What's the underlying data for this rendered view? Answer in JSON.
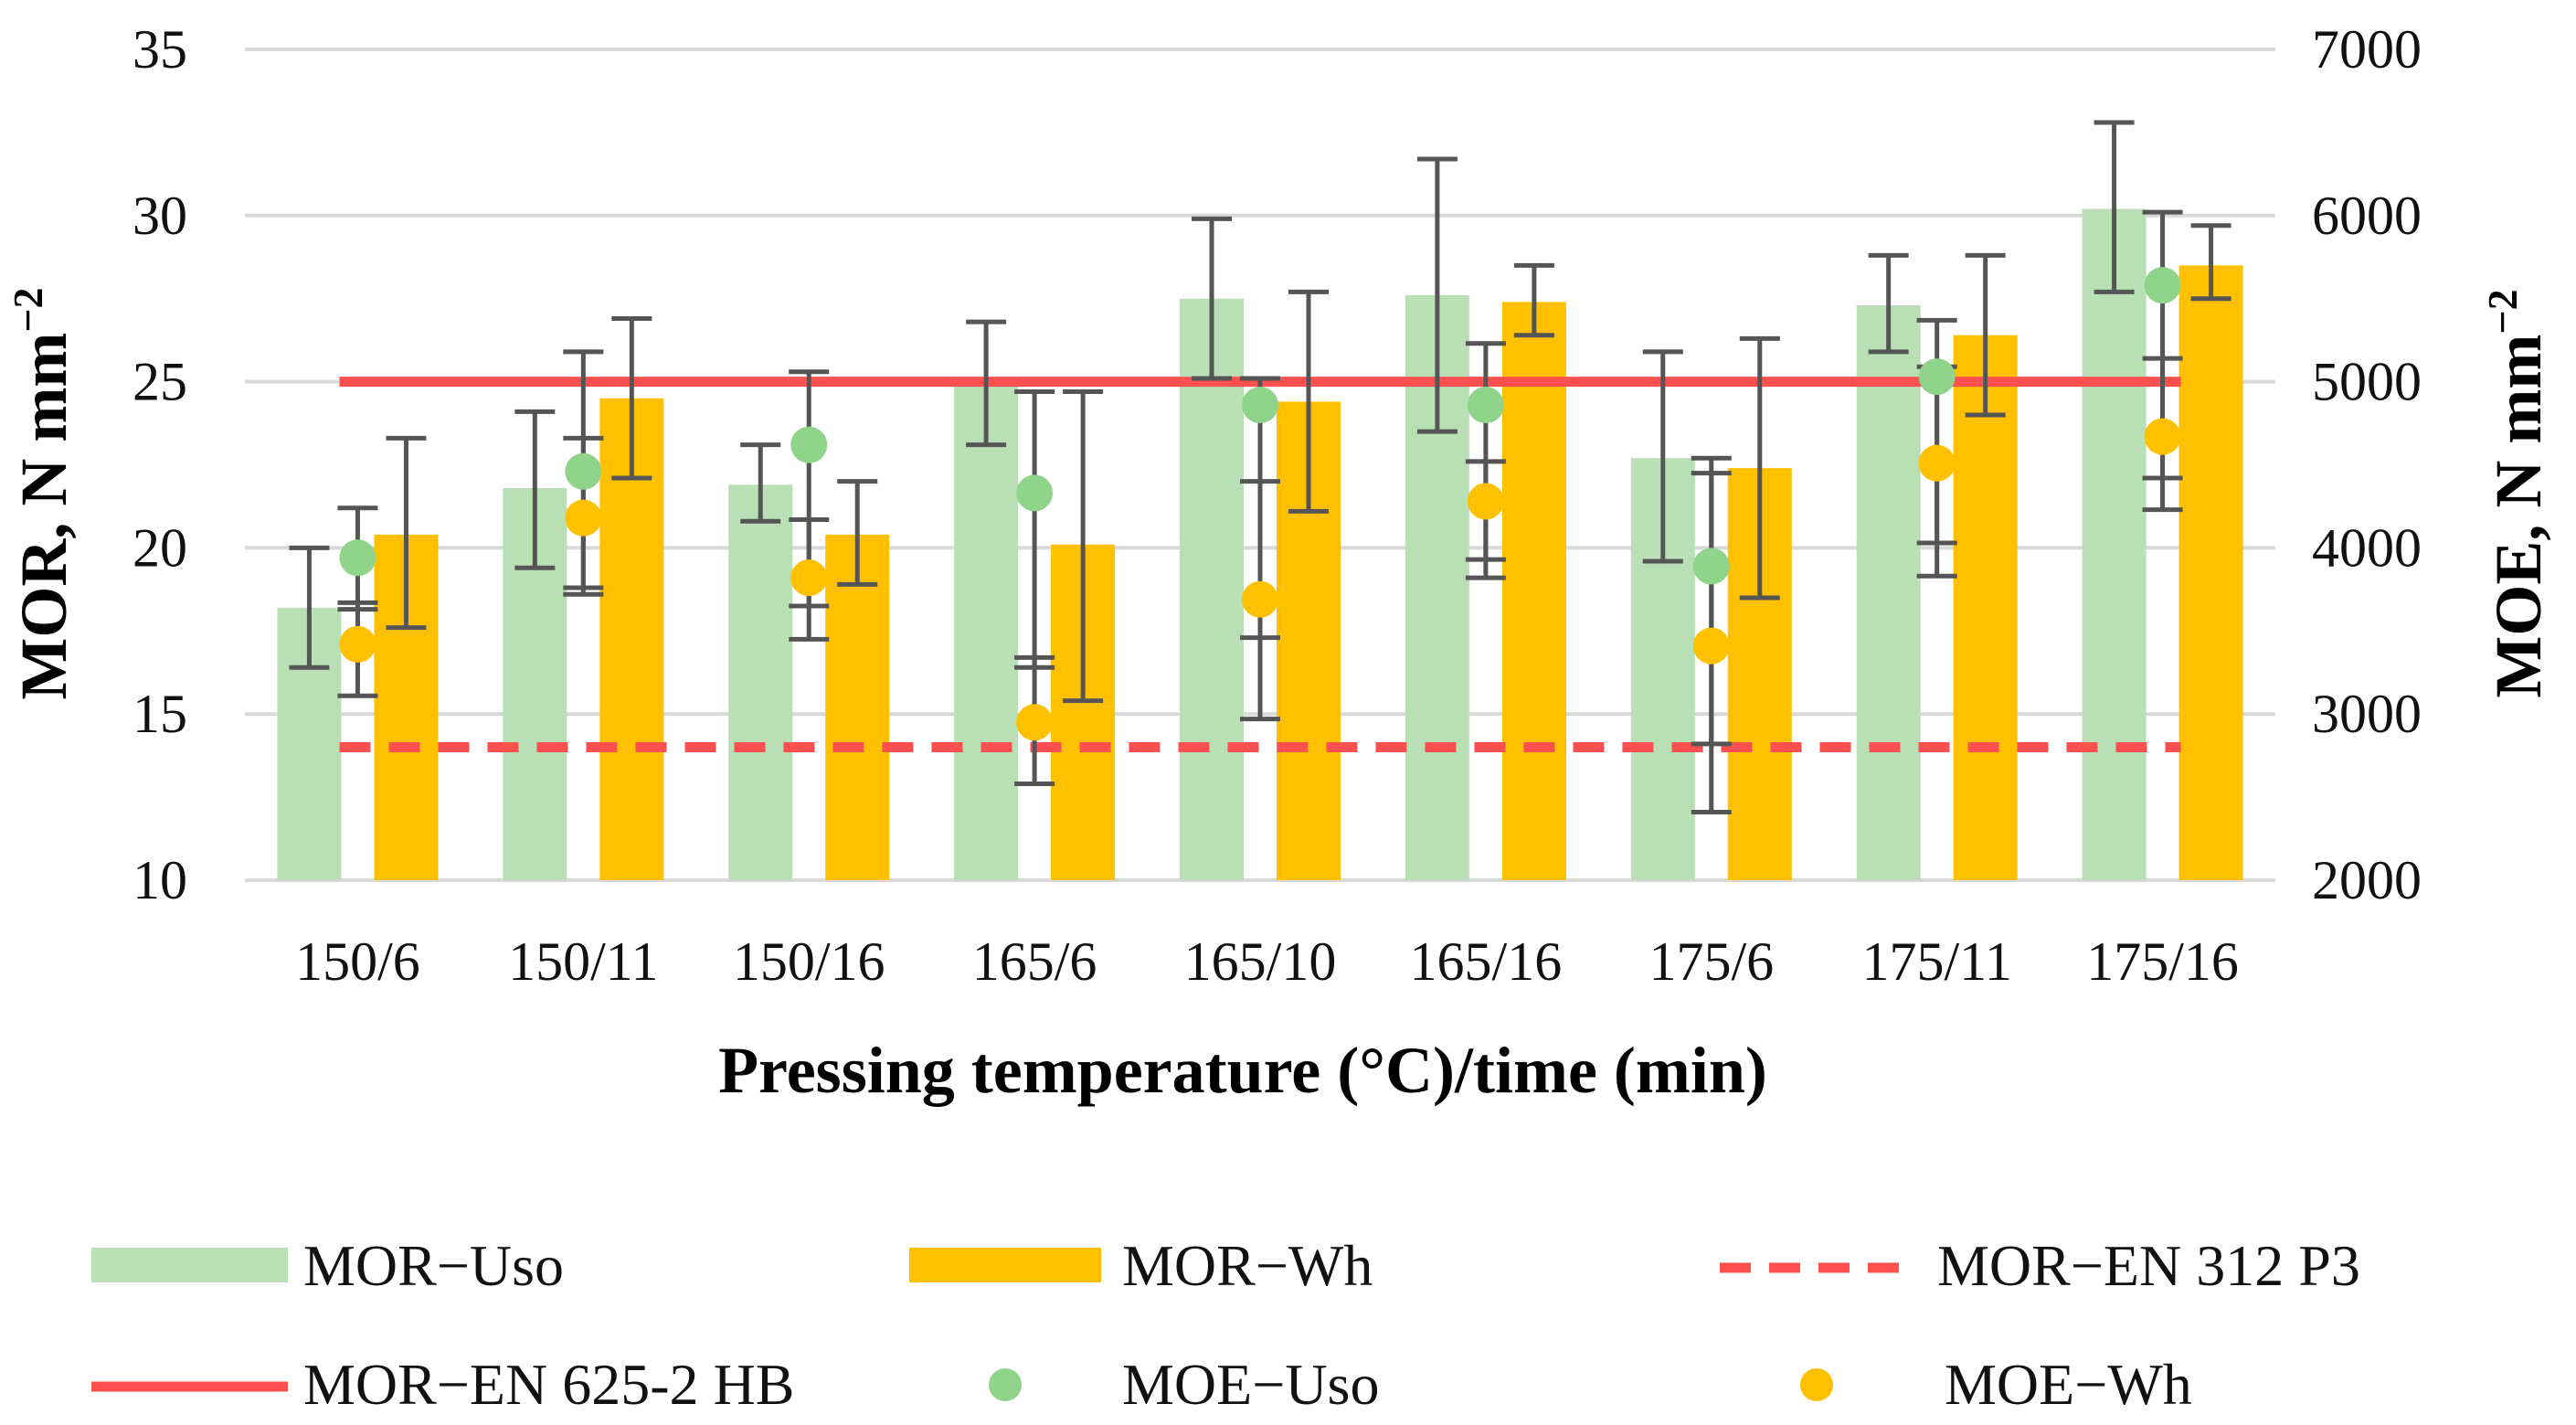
{
  "chart_data": {
    "type": "bar",
    "xlabel": "Pressing temperature (°C)/time (min)",
    "ylabel": "MOR, N mm",
    "ylabel_sup": "−2",
    "y2label": "MOE, N mm",
    "y2label_sup": "−2",
    "categories": [
      "150/6",
      "150/11",
      "150/16",
      "165/6",
      "165/10",
      "165/16",
      "175/6",
      "175/11",
      "175/16"
    ],
    "ylim": [
      10,
      35
    ],
    "y2lim": [
      2000,
      7000
    ],
    "yticks": [
      10,
      15,
      20,
      25,
      30,
      35
    ],
    "y2ticks": [
      2000,
      3000,
      4000,
      5000,
      6000,
      7000
    ],
    "grid": true,
    "legend_position": "bottom",
    "series": [
      {
        "name": "MOR−Uso",
        "kind": "bar",
        "axis": "left",
        "color": "#b9e0b4",
        "values": [
          18.2,
          21.8,
          21.9,
          24.9,
          27.5,
          27.6,
          22.7,
          27.3,
          30.2
        ],
        "err_low": [
          16.4,
          19.4,
          20.8,
          23.1,
          25.1,
          23.5,
          19.6,
          25.9,
          27.7
        ],
        "err_high": [
          20.0,
          24.1,
          23.1,
          26.8,
          29.9,
          31.7,
          25.9,
          28.8,
          32.8
        ]
      },
      {
        "name": "MOR−Wh",
        "kind": "bar",
        "axis": "left",
        "color": "#ffc000",
        "values": [
          20.4,
          24.5,
          20.4,
          20.1,
          24.4,
          27.4,
          22.4,
          26.4,
          28.5
        ],
        "err_low": [
          17.6,
          22.1,
          18.9,
          15.4,
          21.1,
          26.4,
          18.5,
          24.0,
          27.5
        ],
        "err_high": [
          23.3,
          26.9,
          22.0,
          24.7,
          27.7,
          28.5,
          26.3,
          28.8,
          29.7
        ]
      },
      {
        "name": "MOR−EN 312 P3",
        "kind": "dashed-line",
        "axis": "left",
        "color": "#ff5050",
        "values": [
          14,
          14,
          14,
          14,
          14,
          14,
          14,
          14,
          14
        ]
      },
      {
        "name": "MOR−EN 625-2 HB",
        "kind": "line",
        "axis": "left",
        "color": "#ff5050",
        "values": [
          25,
          25,
          25,
          25,
          25,
          25,
          25,
          25,
          25
        ]
      },
      {
        "name": "MOE−Uso",
        "kind": "scatter",
        "axis": "right",
        "color": "#8fd48a",
        "values": [
          3940,
          4460,
          4620,
          4330,
          4860,
          4860,
          3890,
          5030,
          5580
        ],
        "err_low": [
          3630,
          3720,
          3450,
          3280,
          3460,
          3930,
          2820,
          4030,
          4420
        ],
        "err_high": [
          4240,
          5180,
          5060,
          4940,
          5020,
          5230,
          4540,
          5370,
          6020
        ]
      },
      {
        "name": "MOE−Wh",
        "kind": "scatter",
        "axis": "right",
        "color": "#ffc000",
        "values": [
          3420,
          4180,
          3820,
          2950,
          3690,
          4280,
          3410,
          4510,
          4670
        ],
        "err_low": [
          3110,
          3760,
          3650,
          2580,
          2970,
          3820,
          2410,
          3830,
          4230
        ],
        "err_high": [
          3670,
          4660,
          4170,
          3340,
          4400,
          4520,
          4450,
          5090,
          5140
        ]
      }
    ]
  }
}
